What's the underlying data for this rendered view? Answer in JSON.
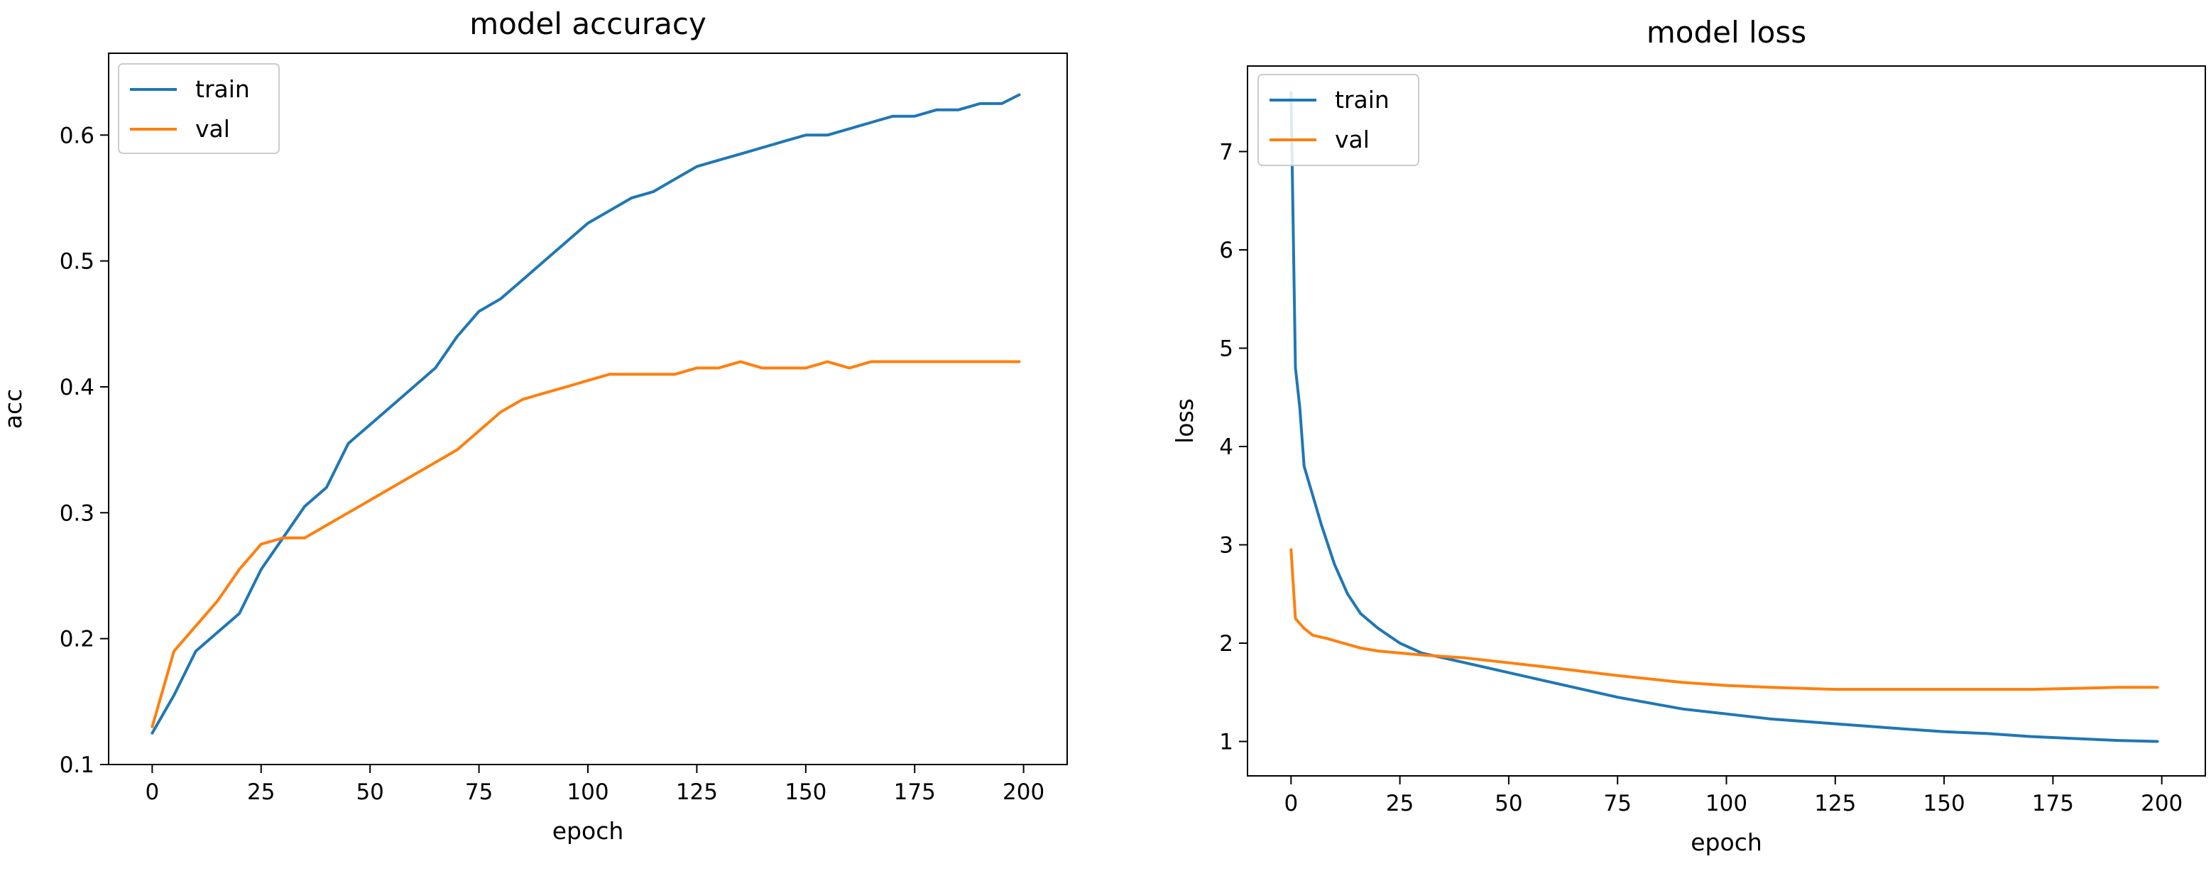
{
  "colors": {
    "train": "#1f77b4",
    "val": "#ff7f0e"
  },
  "chart_data": [
    {
      "type": "line",
      "title": "model accuracy",
      "xlabel": "epoch",
      "ylabel": "acc",
      "xlim": [
        -10,
        210
      ],
      "ylim": [
        0.1,
        0.665
      ],
      "xticks": [
        0,
        25,
        50,
        75,
        100,
        125,
        150,
        175,
        200
      ],
      "xtick_labels": [
        "0",
        "25",
        "50",
        "75",
        "100",
        "125",
        "150",
        "175",
        "200"
      ],
      "yticks": [
        0.1,
        0.2,
        0.3,
        0.4,
        0.5,
        0.6
      ],
      "ytick_labels": [
        "0.1",
        "0.2",
        "0.3",
        "0.4",
        "0.5",
        "0.6"
      ],
      "legend": "upper left",
      "series": [
        {
          "name": "train",
          "x": [
            0,
            5,
            10,
            15,
            20,
            25,
            30,
            35,
            40,
            45,
            50,
            55,
            60,
            65,
            70,
            75,
            80,
            85,
            90,
            95,
            100,
            105,
            110,
            115,
            120,
            125,
            130,
            135,
            140,
            145,
            150,
            155,
            160,
            165,
            170,
            175,
            180,
            185,
            190,
            195,
            199
          ],
          "values": [
            0.125,
            0.155,
            0.19,
            0.205,
            0.22,
            0.255,
            0.28,
            0.305,
            0.32,
            0.355,
            0.37,
            0.385,
            0.4,
            0.415,
            0.44,
            0.46,
            0.47,
            0.485,
            0.5,
            0.515,
            0.53,
            0.54,
            0.55,
            0.555,
            0.565,
            0.575,
            0.58,
            0.585,
            0.59,
            0.595,
            0.6,
            0.6,
            0.605,
            0.61,
            0.615,
            0.615,
            0.62,
            0.62,
            0.625,
            0.625,
            0.632
          ]
        },
        {
          "name": "val",
          "x": [
            0,
            5,
            10,
            15,
            20,
            25,
            30,
            35,
            40,
            45,
            50,
            55,
            60,
            65,
            70,
            75,
            80,
            85,
            90,
            95,
            100,
            105,
            110,
            115,
            120,
            125,
            130,
            135,
            140,
            145,
            150,
            155,
            160,
            165,
            170,
            175,
            180,
            185,
            190,
            195,
            199
          ],
          "values": [
            0.13,
            0.19,
            0.21,
            0.23,
            0.255,
            0.275,
            0.28,
            0.28,
            0.29,
            0.3,
            0.31,
            0.32,
            0.33,
            0.34,
            0.35,
            0.365,
            0.38,
            0.39,
            0.395,
            0.4,
            0.405,
            0.41,
            0.41,
            0.41,
            0.41,
            0.415,
            0.415,
            0.42,
            0.415,
            0.415,
            0.415,
            0.42,
            0.415,
            0.42,
            0.42,
            0.42,
            0.42,
            0.42,
            0.42,
            0.42,
            0.42
          ]
        }
      ]
    },
    {
      "type": "line",
      "title": "model loss",
      "xlabel": "epoch",
      "ylabel": "loss",
      "xlim": [
        -10,
        210
      ],
      "ylim": [
        0.65,
        7.87
      ],
      "xticks": [
        0,
        25,
        50,
        75,
        100,
        125,
        150,
        175,
        200
      ],
      "xtick_labels": [
        "0",
        "25",
        "50",
        "75",
        "100",
        "125",
        "150",
        "175",
        "200"
      ],
      "yticks": [
        1,
        2,
        3,
        4,
        5,
        6,
        7
      ],
      "ytick_labels": [
        "1",
        "2",
        "3",
        "4",
        "5",
        "6",
        "7"
      ],
      "legend": "upper left",
      "series": [
        {
          "name": "train",
          "x": [
            0,
            1,
            2,
            3,
            5,
            7,
            10,
            13,
            16,
            20,
            25,
            30,
            40,
            50,
            60,
            75,
            90,
            100,
            110,
            125,
            140,
            150,
            160,
            170,
            180,
            190,
            199
          ],
          "values": [
            7.6,
            4.8,
            4.4,
            3.8,
            3.5,
            3.2,
            2.8,
            2.5,
            2.3,
            2.15,
            2.0,
            1.9,
            1.8,
            1.7,
            1.6,
            1.45,
            1.33,
            1.28,
            1.23,
            1.18,
            1.13,
            1.1,
            1.08,
            1.05,
            1.03,
            1.01,
            1.0
          ]
        },
        {
          "name": "val",
          "x": [
            0,
            1,
            3,
            5,
            8,
            12,
            16,
            20,
            25,
            30,
            40,
            50,
            60,
            75,
            90,
            100,
            110,
            125,
            140,
            150,
            160,
            170,
            180,
            190,
            199
          ],
          "values": [
            2.95,
            2.25,
            2.15,
            2.08,
            2.05,
            2.0,
            1.95,
            1.92,
            1.9,
            1.88,
            1.85,
            1.8,
            1.75,
            1.67,
            1.6,
            1.57,
            1.55,
            1.53,
            1.53,
            1.53,
            1.53,
            1.53,
            1.54,
            1.55,
            1.55
          ]
        }
      ]
    }
  ]
}
